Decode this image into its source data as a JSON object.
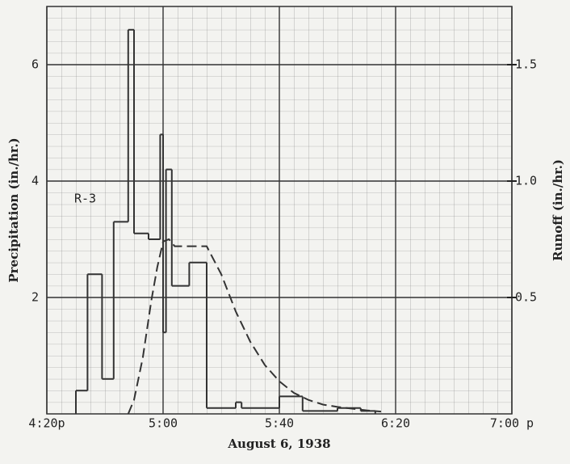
{
  "chart_data": {
    "type": "hyetograph",
    "ylabel": "Precipitation (in./hr.)",
    "y2label": "Runoff (in./hr.)",
    "xlabel": "August 6, 1938",
    "annotation": "R-3",
    "xlim": [
      "4:20",
      "7:00"
    ],
    "xticks": [
      {
        "value": "4:20",
        "label": "4:20p"
      },
      "5:00",
      "5:40",
      "6:20",
      {
        "value": "7:00",
        "label": "7:00 p"
      }
    ],
    "ylim": [
      0,
      7
    ],
    "yticks": [
      2,
      4,
      6
    ],
    "y2lim": [
      0,
      1.75
    ],
    "y2ticks": [
      0.5,
      {
        "value": 1,
        "label": "1.0"
      },
      1.5
    ],
    "grid": true,
    "series": [
      {
        "color": "#333333",
        "bins": [
          "4:30",
          "4:34",
          "4:39",
          "4:43",
          "4:48",
          "4:50",
          "4:55",
          "4:59",
          "5:00",
          "5:01",
          "5:03",
          "5:09",
          "5:15",
          "5:25",
          "5:27",
          "5:40",
          "5:48",
          "6:00",
          "6:08",
          "6:13"
        ],
        "values": [
          0.4,
          2.4,
          0.6,
          3.3,
          6.6,
          3.1,
          3.0,
          4.8,
          1.4,
          4.2,
          2.2,
          2.6,
          0.1,
          0.2,
          0.1,
          0.3,
          0.05,
          0.1,
          0.05
        ]
      },
      {
        "color": "#333333",
        "axis": "y2",
        "dashed": true,
        "x": [
          "4:48",
          "4:50",
          "4:53",
          "4:56",
          "4:58",
          "5:00",
          "5:02",
          "5:04",
          "5:15",
          "5:20",
          "5:25",
          "5:30",
          "5:35",
          "5:40",
          "5:45",
          "5:50",
          "5:55",
          "6:00",
          "6:10",
          "6:15"
        ],
        "values": [
          0,
          0.06,
          0.24,
          0.49,
          0.63,
          0.74,
          0.75,
          0.72,
          0.72,
          0.6,
          0.44,
          0.31,
          0.21,
          0.14,
          0.09,
          0.06,
          0.04,
          0.03,
          0.015,
          0.01
        ]
      }
    ]
  }
}
